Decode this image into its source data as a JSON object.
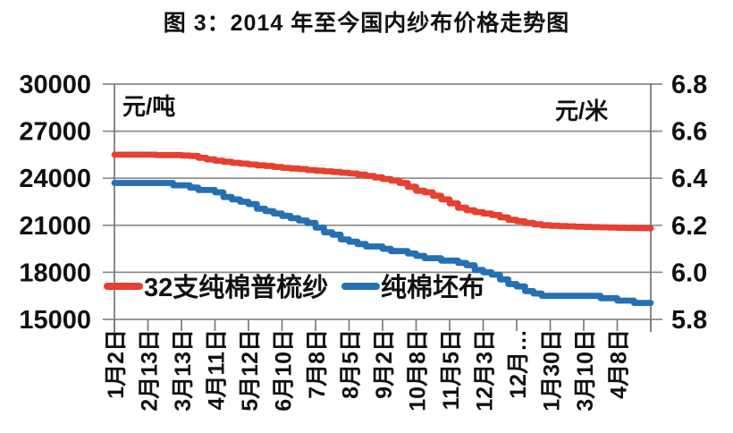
{
  "title": "图 3：2014 年至今国内纱布价格走势图",
  "chart_data": {
    "type": "line",
    "title": "图 3：2014 年至今国内纱布价格走势图",
    "grid": "horizontal",
    "legend_position": "inside-bottom-left",
    "left_axis": {
      "unit": "元/吨",
      "min": 15000,
      "max": 30000,
      "ticks": [
        30000,
        27000,
        24000,
        21000,
        18000,
        15000
      ]
    },
    "right_axis": {
      "unit": "元/米",
      "min": 5.8,
      "max": 6.8,
      "ticks": [
        6.8,
        6.6,
        6.4,
        6.2,
        6.0,
        5.8
      ]
    },
    "x_labels": [
      "1月2日",
      "2月13日",
      "3月13日",
      "4月11日",
      "5月12日",
      "6月10日",
      "7月8日",
      "8月5日",
      "9月2日",
      "10月8日",
      "11月5日",
      "12月3日",
      "12月…",
      "1月30日",
      "3月10日",
      "4月8日"
    ],
    "series": [
      {
        "name": "32支纯棉普梳纱",
        "axis": "left",
        "color": "#e6402e",
        "values": [
          25500,
          25500,
          25500,
          25500,
          25500,
          25480,
          25480,
          25480,
          25450,
          25420,
          25300,
          25200,
          25120,
          25050,
          24980,
          24930,
          24870,
          24820,
          24780,
          24720,
          24660,
          24620,
          24580,
          24520,
          24480,
          24440,
          24400,
          24350,
          24300,
          24230,
          24150,
          24050,
          23950,
          23850,
          23700,
          23450,
          23200,
          23100,
          22880,
          22650,
          22400,
          22120,
          21960,
          21840,
          21750,
          21650,
          21500,
          21350,
          21250,
          21150,
          21060,
          21000,
          20970,
          20950,
          20930,
          20910,
          20900,
          20880,
          20870,
          20860,
          20840,
          20830,
          20820,
          20810,
          20800
        ]
      },
      {
        "name": "纯棉坯布",
        "axis": "right",
        "color": "#2470b3",
        "values": [
          6.38,
          6.38,
          6.38,
          6.38,
          6.38,
          6.38,
          6.38,
          6.37,
          6.37,
          6.36,
          6.35,
          6.35,
          6.34,
          6.32,
          6.31,
          6.3,
          6.29,
          6.27,
          6.26,
          6.25,
          6.24,
          6.23,
          6.22,
          6.21,
          6.19,
          6.17,
          6.16,
          6.14,
          6.13,
          6.12,
          6.11,
          6.11,
          6.1,
          6.09,
          6.09,
          6.08,
          6.07,
          6.06,
          6.06,
          6.05,
          6.05,
          6.04,
          6.03,
          6.01,
          6.0,
          5.99,
          5.97,
          5.95,
          5.94,
          5.92,
          5.91,
          5.9,
          5.9,
          5.9,
          5.9,
          5.9,
          5.9,
          5.9,
          5.89,
          5.89,
          5.88,
          5.88,
          5.87,
          5.87,
          5.87
        ]
      }
    ],
    "colors": {
      "grid": "#8a8a8a",
      "axis": "#7a7a7a",
      "text": "#111111"
    }
  }
}
